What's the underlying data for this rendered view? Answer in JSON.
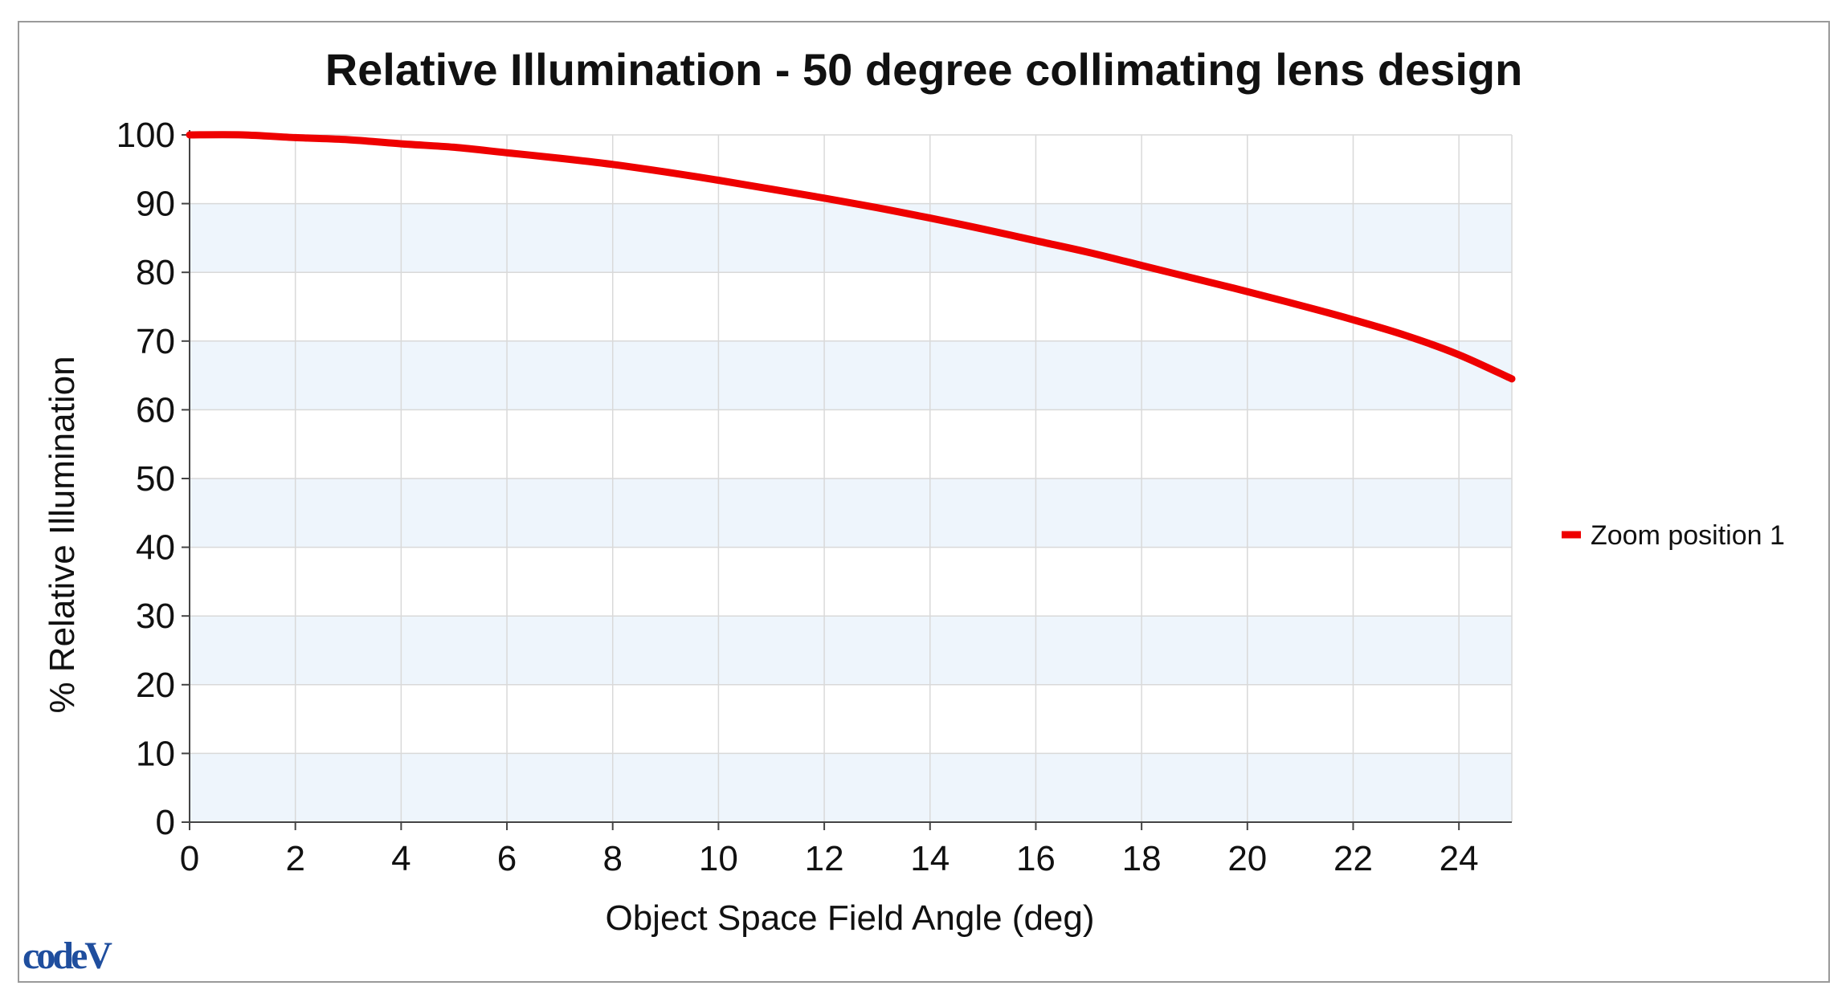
{
  "chart_data": {
    "type": "line",
    "title": "Relative Illumination - 50 degree collimating lens design",
    "xlabel": "Object Space Field Angle (deg)",
    "ylabel": "% Relative Illumination",
    "xlim": [
      0,
      25
    ],
    "ylim": [
      0,
      100
    ],
    "x_ticks": [
      0,
      2,
      4,
      6,
      8,
      10,
      12,
      14,
      16,
      18,
      20,
      22,
      24
    ],
    "y_ticks": [
      0,
      10,
      20,
      30,
      40,
      50,
      60,
      70,
      80,
      90,
      100
    ],
    "grid": true,
    "legend_position": "right",
    "series": [
      {
        "name": "Zoom position 1",
        "color": "#ee0000",
        "x": [
          0,
          1,
          2,
          3,
          4,
          5,
          6,
          7,
          8,
          9,
          10,
          11,
          12,
          13,
          14,
          15,
          16,
          17,
          18,
          19,
          20,
          21,
          22,
          23,
          24,
          25
        ],
        "y": [
          100,
          100,
          99.6,
          99.3,
          98.7,
          98.2,
          97.4,
          96.6,
          95.7,
          94.6,
          93.4,
          92.1,
          90.8,
          89.4,
          87.9,
          86.3,
          84.6,
          82.9,
          81.0,
          79.1,
          77.2,
          75.2,
          73.1,
          70.8,
          68.0,
          64.5
        ]
      }
    ]
  },
  "logo": {
    "text": "codeV"
  },
  "colors": {
    "band": "#eef5fc",
    "grid": "#d9d9d9",
    "axis": "#444444",
    "frame": "#9a9a9a"
  }
}
